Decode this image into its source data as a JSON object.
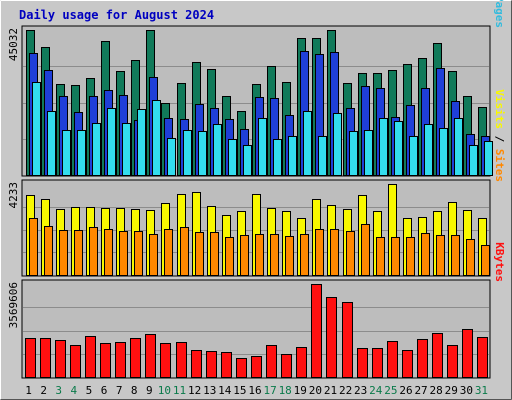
{
  "chart_data": {
    "type": "bar",
    "title": "Daily usage for August 2024",
    "categories": [
      "1",
      "2",
      "3",
      "4",
      "5",
      "6",
      "7",
      "8",
      "9",
      "10",
      "11",
      "12",
      "13",
      "14",
      "15",
      "16",
      "17",
      "18",
      "19",
      "20",
      "21",
      "22",
      "23",
      "24",
      "25",
      "26",
      "27",
      "28",
      "29",
      "30",
      "31"
    ],
    "weekend_days": [
      3,
      4,
      10,
      11,
      17,
      18,
      24,
      25,
      31
    ],
    "colors": {
      "background": "#c8c8c8",
      "panel": "#bdbdbd",
      "title": "#0000c0",
      "weekday_tick": "#000000",
      "weekend_tick": "#0a7a4a",
      "hits": "#117a5a",
      "files": "#1f3fd8",
      "pages": "#33ddee",
      "visits": "#f8f800",
      "sites": "#ff8800",
      "kbytes": "#ff1010"
    },
    "panels": [
      {
        "name": "hits-files-pages",
        "ymax": "45032",
        "ymax_value": 45032,
        "right_label": [
          {
            "text": "Pages",
            "color": "#33bbdd"
          },
          {
            "text": " / ",
            "color": "#000000"
          },
          {
            "text": "Files",
            "color": "#1f3fd8"
          },
          {
            "text": " / ",
            "color": "#000000"
          },
          {
            "text": "Hits",
            "color": "#117a5a"
          }
        ],
        "series": [
          {
            "name": "Hits",
            "color": "#117a5a",
            "values": [
              45032,
              39800,
              28300,
              28000,
              30000,
              41700,
              32300,
              35800,
              45000,
              22500,
              28700,
              35200,
              32800,
              24500,
              19900,
              28200,
              33700,
              28900,
              42600,
              42600,
              45000,
              28700,
              31700,
              31600,
              32700,
              34600,
              36200,
              40900,
              32200,
              24500,
              21000
            ]
          },
          {
            "text_free": true,
            "name": "Files",
            "color": "#1f3fd8",
            "values": [
              37900,
              32500,
              24600,
              19600,
              24500,
              26500,
              24800,
              17000,
              30500,
              17800,
              17500,
              21900,
              20700,
              17300,
              14300,
              24200,
              23800,
              18500,
              38500,
              37700,
              38200,
              20700,
              27500,
              27000,
              18000,
              21700,
              27000,
              33300,
              23000,
              12700,
              12100
            ]
          },
          {
            "name": "Pages",
            "color": "#33ddee",
            "values": [
              28800,
              20000,
              14100,
              14000,
              16300,
              20700,
              16100,
              20600,
              23200,
              11600,
              14000,
              13700,
              15800,
              11200,
              9200,
              17600,
              11200,
              12100,
              20000,
              12000,
              19100,
              13600,
              13900,
              17700,
              16800,
              12000,
              15900,
              14600,
              17600,
              9200,
              10500
            ]
          }
        ]
      },
      {
        "name": "visits-sites",
        "ymax": "4233",
        "ymax_value": 4233,
        "right_label": [
          {
            "text": "Sites",
            "color": "#ff8800"
          },
          {
            "text": " / ",
            "color": "#000000"
          },
          {
            "text": "Visits",
            "color": "#f8f800"
          }
        ],
        "series": [
          {
            "name": "Visits",
            "color": "#f8f800",
            "values": [
              3700,
              3550,
              3080,
              3150,
              3170,
              3100,
              3100,
              3070,
              3010,
              3370,
              3770,
              3840,
              3210,
              2810,
              2980,
              3750,
              3100,
              2960,
              2660,
              3550,
              3270,
              3070,
              3700,
              2980,
              4233,
              2630,
              2700,
              2970,
              3410,
              3040,
              2660
            ]
          },
          {
            "name": "Sites",
            "color": "#ff8800",
            "values": [
              2630,
              2300,
              2100,
              2090,
              2210,
              2140,
              2060,
              2050,
              1900,
              2140,
              2240,
              2020,
              2000,
              1770,
              1880,
              1930,
              1910,
              1820,
              1920,
              2150,
              2140,
              2050,
              2360,
              1750,
              1790,
              1750,
              1960,
              1880,
              1840,
              1690,
              1390
            ]
          }
        ]
      },
      {
        "name": "kbytes",
        "ymax": "3569606",
        "ymax_value": 3569606,
        "right_label": [
          {
            "text": "KBytes",
            "color": "#ff1010"
          }
        ],
        "series": [
          {
            "name": "KBytes",
            "color": "#ff1010",
            "values": [
              1490000,
              1480000,
              1410000,
              1220000,
              1590000,
              1320000,
              1330000,
              1480000,
              1660000,
              1310000,
              1360000,
              1030000,
              980000,
              950000,
              720000,
              800000,
              1220000,
              880000,
              1160000,
              3569606,
              3060000,
              2860000,
              1130000,
              1130000,
              1390000,
              1030000,
              1470000,
              1700000,
              1230000,
              1830000,
              1550000
            ]
          }
        ]
      }
    ]
  }
}
